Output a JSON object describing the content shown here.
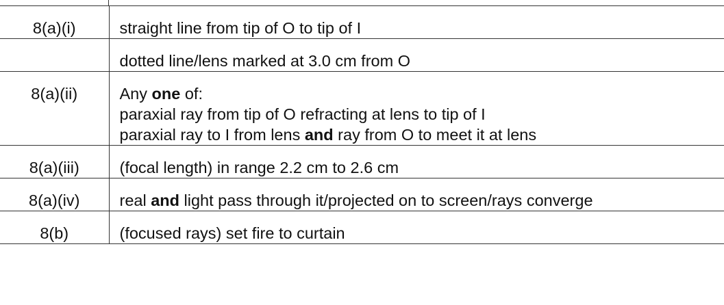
{
  "rows": [
    {
      "question": "8(a)(i)",
      "answers": [
        [
          {
            "text": "straight line from tip of O to tip of I",
            "bold": false
          }
        ]
      ]
    },
    {
      "question": "",
      "answers": [
        [
          {
            "text": "dotted line/lens marked at 3.0 cm from O",
            "bold": false
          }
        ]
      ]
    },
    {
      "question": "8(a)(ii)",
      "answers": [
        [
          {
            "text": "Any ",
            "bold": false
          },
          {
            "text": "one",
            "bold": true
          },
          {
            "text": " of:",
            "bold": false
          }
        ],
        [
          {
            "text": "paraxial ray from tip of O refracting at lens to tip of I",
            "bold": false
          }
        ],
        [
          {
            "text": "paraxial ray to I from lens ",
            "bold": false
          },
          {
            "text": "and",
            "bold": true
          },
          {
            "text": " ray from O to meet it at lens",
            "bold": false
          }
        ]
      ]
    },
    {
      "question": "8(a)(iii)",
      "answers": [
        [
          {
            "text": "(focal length) in range 2.2 cm to 2.6 cm",
            "bold": false
          }
        ]
      ]
    },
    {
      "question": "8(a)(iv)",
      "answers": [
        [
          {
            "text": "real ",
            "bold": false
          },
          {
            "text": "and",
            "bold": true
          },
          {
            "text": " light pass through it/projected on to screen/rays converge",
            "bold": false
          }
        ]
      ]
    },
    {
      "question": "8(b)",
      "answers": [
        [
          {
            "text": "(focused rays) set fire to curtain",
            "bold": false
          }
        ]
      ]
    }
  ]
}
